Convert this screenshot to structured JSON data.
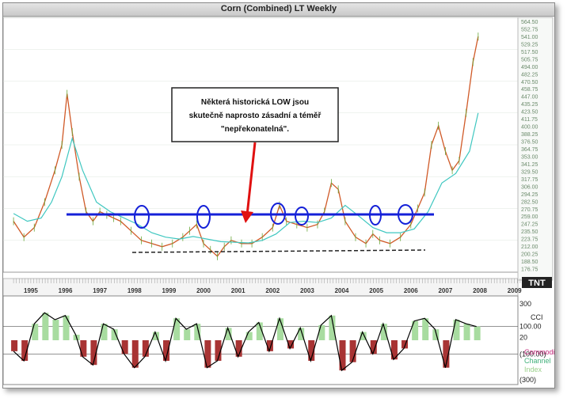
{
  "window": {
    "title": "Corn (Combined) LT Weekly"
  },
  "annotation": {
    "line1": "Některá historická LOW jsou",
    "line2": "skutečně naprosto zásadní a téměř",
    "line3": "\"nepřekonatelná\"."
  },
  "logo": {
    "text": "TNT"
  },
  "chart_data": [
    {
      "type": "line",
      "title": "Corn (Combined) LT Weekly",
      "x_labels": [
        "1995",
        "1996",
        "1997",
        "1998",
        "1999",
        "2000",
        "2001",
        "2002",
        "2003",
        "2004",
        "2005",
        "2006",
        "2007",
        "2008",
        "2009"
      ],
      "y_ticks": [
        "564.50",
        "552.75",
        "541.00",
        "529.25",
        "517.50",
        "505.75",
        "494.00",
        "482.25",
        "470.50",
        "458.75",
        "447.00",
        "435.25",
        "423.50",
        "411.75",
        "400.00",
        "388.25",
        "376.50",
        "364.75",
        "353.00",
        "341.25",
        "329.50",
        "317.75",
        "306.00",
        "294.25",
        "282.50",
        "270.75",
        "259.00",
        "247.25",
        "235.50",
        "223.75",
        "212.00",
        "200.25",
        "188.50",
        "176.75"
      ],
      "ylim": [
        170,
        570
      ],
      "series": [
        {
          "color": "#d05a28",
          "x": [
            1995.0,
            1995.3,
            1995.6,
            1995.9,
            1996.2,
            1996.4,
            1996.55,
            1996.7,
            1996.9,
            1997.1,
            1997.3,
            1997.5,
            1997.7,
            1997.9,
            1998.1,
            1998.4,
            1998.7,
            1999.0,
            1999.3,
            1999.6,
            1999.9,
            2000.1,
            2000.3,
            2000.5,
            2000.7,
            2000.9,
            2001.1,
            2001.3,
            2001.6,
            2001.9,
            2002.2,
            2002.5,
            2002.7,
            2002.9,
            2003.2,
            2003.5,
            2003.8,
            2004.0,
            2004.2,
            2004.4,
            2004.6,
            2004.9,
            2005.2,
            2005.4,
            2005.6,
            2005.9,
            2006.2,
            2006.5,
            2006.7,
            2006.9,
            2007.1,
            2007.3,
            2007.5,
            2007.7,
            2007.9,
            2008.1,
            2008.3,
            2008.45
          ],
          "values": [
            250,
            225,
            240,
            280,
            330,
            370,
            450,
            390,
            320,
            265,
            250,
            265,
            260,
            255,
            250,
            235,
            220,
            215,
            210,
            215,
            225,
            235,
            245,
            215,
            205,
            195,
            210,
            220,
            215,
            215,
            225,
            240,
            275,
            250,
            245,
            240,
            245,
            265,
            310,
            300,
            250,
            225,
            215,
            230,
            220,
            215,
            225,
            245,
            270,
            295,
            370,
            400,
            360,
            330,
            345,
            420,
            500,
            540
          ]
        },
        {
          "color": "#3fc7c0",
          "x": [
            1995.0,
            1995.4,
            1995.8,
            1996.1,
            1996.4,
            1996.7,
            1997.0,
            1997.4,
            1997.8,
            1998.2,
            1998.6,
            1999.0,
            1999.4,
            1999.8,
            2000.2,
            2000.6,
            2001.0,
            2001.4,
            2001.8,
            2002.2,
            2002.6,
            2003.0,
            2003.4,
            2003.8,
            2004.2,
            2004.6,
            2005.0,
            2005.4,
            2005.8,
            2006.2,
            2006.6,
            2007.0,
            2007.4,
            2007.8,
            2008.2,
            2008.45
          ],
          "values": [
            262,
            250,
            255,
            280,
            320,
            380,
            330,
            280,
            265,
            255,
            245,
            232,
            225,
            222,
            226,
            222,
            218,
            217,
            216,
            220,
            230,
            248,
            250,
            248,
            255,
            275,
            258,
            240,
            232,
            232,
            238,
            265,
            310,
            325,
            360,
            420
          ]
        }
      ],
      "annotations": [
        "Některá historická LOW jsou skutečně naprosto zásadní a téměř \"nepřekonatelná\"."
      ]
    },
    {
      "type": "line",
      "title": "CCI",
      "legend": [
        "Commodity",
        "Channel",
        "Index"
      ],
      "y_ticks": [
        "300",
        "100.00",
        "20",
        "(100.00)",
        "(300)"
      ],
      "ylim": [
        -300,
        300
      ],
      "reference_lines": [
        100,
        -100
      ],
      "series": [
        {
          "color": "#000000",
          "x": [
            1995.0,
            1995.3,
            1995.6,
            1995.9,
            1996.2,
            1996.5,
            1996.8,
            1997.0,
            1997.3,
            1997.6,
            1997.9,
            1998.2,
            1998.5,
            1998.8,
            1999.1,
            1999.4,
            1999.7,
            2000.0,
            2000.3,
            2000.6,
            2000.9,
            2001.2,
            2001.5,
            2001.8,
            2002.1,
            2002.4,
            2002.7,
            2003.0,
            2003.3,
            2003.6,
            2003.9,
            2004.2,
            2004.5,
            2004.8,
            2005.1,
            2005.4,
            2005.7,
            2006.0,
            2006.3,
            2006.6,
            2006.9,
            2007.2,
            2007.5,
            2007.8,
            2008.1,
            2008.4
          ],
          "values": [
            -80,
            -150,
            120,
            200,
            150,
            180,
            40,
            -120,
            -180,
            120,
            80,
            -100,
            -200,
            -120,
            60,
            -150,
            160,
            80,
            120,
            -200,
            -150,
            90,
            -120,
            60,
            130,
            -80,
            160,
            -60,
            90,
            -150,
            110,
            180,
            -220,
            -160,
            60,
            -100,
            120,
            -140,
            -60,
            140,
            160,
            80,
            -200,
            150,
            120,
            100
          ]
        }
      ]
    }
  ]
}
